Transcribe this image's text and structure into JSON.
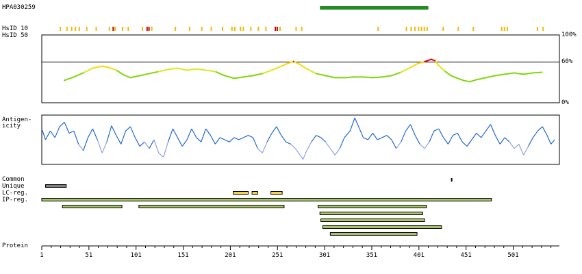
{
  "chart_data": {
    "type": "sequence-feature-map",
    "antibody_id": "HPA030259",
    "antigen_range": [
      296,
      411
    ],
    "protein_length": 549,
    "x_axis": {
      "label": "Protein",
      "tick_labels": [
        "1",
        "51",
        "101",
        "151",
        "201",
        "251",
        "301",
        "351",
        "401",
        "451",
        "501"
      ],
      "tick_values": [
        1,
        51,
        101,
        151,
        201,
        251,
        301,
        351,
        401,
        451,
        501
      ]
    },
    "hsid": {
      "label_10": "HsID 10",
      "label_50": "HsID 50",
      "marks": [
        {
          "pos": 20,
          "level": "low"
        },
        {
          "pos": 27,
          "level": "low"
        },
        {
          "pos": 32,
          "level": "low"
        },
        {
          "pos": 36,
          "level": "low"
        },
        {
          "pos": 40,
          "level": "low"
        },
        {
          "pos": 48,
          "level": "low"
        },
        {
          "pos": 58,
          "level": "low"
        },
        {
          "pos": 72,
          "level": "low"
        },
        {
          "pos": 76,
          "level": "high"
        },
        {
          "pos": 78,
          "level": "low"
        },
        {
          "pos": 86,
          "level": "low"
        },
        {
          "pos": 92,
          "level": "low"
        },
        {
          "pos": 107,
          "level": "low"
        },
        {
          "pos": 112,
          "level": "high"
        },
        {
          "pos": 114,
          "level": "high"
        },
        {
          "pos": 117,
          "level": "low"
        },
        {
          "pos": 142,
          "level": "low"
        },
        {
          "pos": 157,
          "level": "low"
        },
        {
          "pos": 170,
          "level": "low"
        },
        {
          "pos": 180,
          "level": "low"
        },
        {
          "pos": 192,
          "level": "low"
        },
        {
          "pos": 202,
          "level": "low"
        },
        {
          "pos": 205,
          "level": "low"
        },
        {
          "pos": 211,
          "level": "low"
        },
        {
          "pos": 214,
          "level": "low"
        },
        {
          "pos": 222,
          "level": "low"
        },
        {
          "pos": 230,
          "level": "low"
        },
        {
          "pos": 238,
          "level": "low"
        },
        {
          "pos": 248,
          "level": "high"
        },
        {
          "pos": 250,
          "level": "high"
        },
        {
          "pos": 253,
          "level": "low"
        },
        {
          "pos": 270,
          "level": "low"
        },
        {
          "pos": 276,
          "level": "low"
        },
        {
          "pos": 357,
          "level": "low"
        },
        {
          "pos": 387,
          "level": "low"
        },
        {
          "pos": 392,
          "level": "low"
        },
        {
          "pos": 396,
          "level": "low"
        },
        {
          "pos": 400,
          "level": "low"
        },
        {
          "pos": 403,
          "level": "low"
        },
        {
          "pos": 406,
          "level": "low"
        },
        {
          "pos": 409,
          "level": "low"
        },
        {
          "pos": 426,
          "level": "low"
        },
        {
          "pos": 442,
          "level": "low"
        },
        {
          "pos": 458,
          "level": "low"
        },
        {
          "pos": 488,
          "level": "low"
        },
        {
          "pos": 491,
          "level": "low"
        },
        {
          "pos": 494,
          "level": "low"
        },
        {
          "pos": 526,
          "level": "low"
        },
        {
          "pos": 532,
          "level": "low"
        }
      ]
    },
    "identity_plot": {
      "ylim": [
        0,
        100
      ],
      "y_tick_labels": [
        "100%",
        "60%",
        "0%"
      ],
      "y_tick_values": [
        100,
        60,
        0
      ],
      "threshold": 60,
      "points": [
        [
          25,
          33
        ],
        [
          35,
          38
        ],
        [
          45,
          44
        ],
        [
          55,
          51
        ],
        [
          65,
          54
        ],
        [
          72,
          52
        ],
        [
          80,
          48
        ],
        [
          88,
          41
        ],
        [
          95,
          37
        ],
        [
          105,
          40
        ],
        [
          115,
          43
        ],
        [
          125,
          46
        ],
        [
          135,
          49
        ],
        [
          145,
          51
        ],
        [
          155,
          48
        ],
        [
          165,
          50
        ],
        [
          175,
          48
        ],
        [
          185,
          46
        ],
        [
          195,
          40
        ],
        [
          205,
          36
        ],
        [
          215,
          38
        ],
        [
          225,
          40
        ],
        [
          235,
          43
        ],
        [
          245,
          48
        ],
        [
          255,
          54
        ],
        [
          262,
          58
        ],
        [
          268,
          61
        ],
        [
          274,
          57
        ],
        [
          282,
          50
        ],
        [
          292,
          43
        ],
        [
          302,
          40
        ],
        [
          312,
          37
        ],
        [
          322,
          37
        ],
        [
          332,
          38
        ],
        [
          342,
          38
        ],
        [
          352,
          37
        ],
        [
          362,
          38
        ],
        [
          372,
          40
        ],
        [
          382,
          45
        ],
        [
          392,
          52
        ],
        [
          400,
          58
        ],
        [
          406,
          60
        ],
        [
          410,
          62
        ],
        [
          414,
          64
        ],
        [
          418,
          62
        ],
        [
          422,
          55
        ],
        [
          428,
          47
        ],
        [
          435,
          40
        ],
        [
          442,
          36
        ],
        [
          448,
          33
        ],
        [
          455,
          31
        ],
        [
          462,
          34
        ],
        [
          472,
          37
        ],
        [
          482,
          40
        ],
        [
          492,
          42
        ],
        [
          502,
          44
        ],
        [
          512,
          42
        ],
        [
          522,
          44
        ],
        [
          532,
          45
        ]
      ]
    },
    "antigenicity": {
      "label_line1": "Antigen-",
      "label_line2": "icity",
      "points": [
        [
          1,
          0.75
        ],
        [
          5,
          0.5
        ],
        [
          10,
          0.7
        ],
        [
          15,
          0.55
        ],
        [
          20,
          0.8
        ],
        [
          25,
          0.9
        ],
        [
          30,
          0.65
        ],
        [
          35,
          0.7
        ],
        [
          40,
          0.4
        ],
        [
          45,
          0.25
        ],
        [
          50,
          0.55
        ],
        [
          55,
          0.75
        ],
        [
          60,
          0.5
        ],
        [
          65,
          0.2
        ],
        [
          70,
          0.45
        ],
        [
          75,
          0.82
        ],
        [
          80,
          0.6
        ],
        [
          85,
          0.4
        ],
        [
          90,
          0.7
        ],
        [
          95,
          0.8
        ],
        [
          100,
          0.55
        ],
        [
          105,
          0.35
        ],
        [
          110,
          0.45
        ],
        [
          115,
          0.3
        ],
        [
          120,
          0.5
        ],
        [
          125,
          0.2
        ],
        [
          130,
          0.1
        ],
        [
          135,
          0.45
        ],
        [
          140,
          0.75
        ],
        [
          145,
          0.55
        ],
        [
          150,
          0.35
        ],
        [
          155,
          0.5
        ],
        [
          160,
          0.75
        ],
        [
          165,
          0.55
        ],
        [
          170,
          0.45
        ],
        [
          175,
          0.75
        ],
        [
          180,
          0.6
        ],
        [
          185,
          0.4
        ],
        [
          190,
          0.55
        ],
        [
          195,
          0.5
        ],
        [
          200,
          0.45
        ],
        [
          205,
          0.55
        ],
        [
          210,
          0.5
        ],
        [
          215,
          0.55
        ],
        [
          220,
          0.6
        ],
        [
          225,
          0.55
        ],
        [
          230,
          0.3
        ],
        [
          235,
          0.2
        ],
        [
          240,
          0.45
        ],
        [
          245,
          0.65
        ],
        [
          250,
          0.8
        ],
        [
          255,
          0.6
        ],
        [
          260,
          0.45
        ],
        [
          265,
          0.4
        ],
        [
          270,
          0.3
        ],
        [
          275,
          0.15
        ],
        [
          278,
          0.05
        ],
        [
          282,
          0.25
        ],
        [
          287,
          0.45
        ],
        [
          292,
          0.6
        ],
        [
          297,
          0.55
        ],
        [
          302,
          0.45
        ],
        [
          307,
          0.3
        ],
        [
          312,
          0.15
        ],
        [
          317,
          0.3
        ],
        [
          322,
          0.55
        ],
        [
          328,
          0.7
        ],
        [
          333,
          1.0
        ],
        [
          337,
          0.8
        ],
        [
          342,
          0.55
        ],
        [
          347,
          0.5
        ],
        [
          352,
          0.65
        ],
        [
          357,
          0.5
        ],
        [
          362,
          0.55
        ],
        [
          367,
          0.6
        ],
        [
          372,
          0.5
        ],
        [
          377,
          0.3
        ],
        [
          382,
          0.45
        ],
        [
          387,
          0.7
        ],
        [
          392,
          0.85
        ],
        [
          397,
          0.6
        ],
        [
          402,
          0.4
        ],
        [
          407,
          0.3
        ],
        [
          412,
          0.45
        ],
        [
          417,
          0.7
        ],
        [
          422,
          0.75
        ],
        [
          427,
          0.55
        ],
        [
          432,
          0.4
        ],
        [
          437,
          0.6
        ],
        [
          442,
          0.65
        ],
        [
          447,
          0.45
        ],
        [
          452,
          0.35
        ],
        [
          457,
          0.5
        ],
        [
          462,
          0.65
        ],
        [
          467,
          0.55
        ],
        [
          472,
          0.7
        ],
        [
          477,
          0.85
        ],
        [
          482,
          0.6
        ],
        [
          487,
          0.4
        ],
        [
          492,
          0.55
        ],
        [
          497,
          0.45
        ],
        [
          502,
          0.3
        ],
        [
          507,
          0.4
        ],
        [
          512,
          0.15
        ],
        [
          517,
          0.35
        ],
        [
          522,
          0.55
        ],
        [
          527,
          0.7
        ],
        [
          532,
          0.8
        ],
        [
          537,
          0.6
        ],
        [
          541,
          0.4
        ],
        [
          545,
          0.5
        ]
      ]
    },
    "tracks": {
      "common": {
        "label": "Common",
        "marks": [
          [
            435,
            436
          ]
        ]
      },
      "unique": {
        "label": "Unique",
        "bars": [
          [
            5,
            27
          ]
        ]
      },
      "lc_reg": {
        "label": "LC-reg.",
        "bars": [
          [
            204,
            220
          ],
          [
            224,
            230
          ],
          [
            244,
            256
          ]
        ]
      },
      "ip_reg": {
        "label": "IP-reg.",
        "bars": [
          [
            1,
            478
          ],
          [
            23,
            86
          ],
          [
            104,
            258
          ],
          [
            294,
            409
          ],
          [
            296,
            405
          ],
          [
            297,
            407
          ],
          [
            299,
            425
          ],
          [
            307,
            399
          ]
        ]
      }
    },
    "colors": {
      "antibody_bar": "#228b22",
      "hsid_low": "#f5b800",
      "hsid_high": "#cc0000",
      "identity_low": "#7fd60a",
      "identity_mid": "#d8ea1e",
      "identity_high": "#ffd700",
      "identity_over": "#e60000",
      "antigenicity_high": "#1f66d0",
      "antigenicity_low": "#8f9fe6",
      "unique_bar": "#808080",
      "lc_bar": "#f2d24a",
      "ip_bar": "#a7c46c",
      "bar_border": "#000000"
    }
  }
}
